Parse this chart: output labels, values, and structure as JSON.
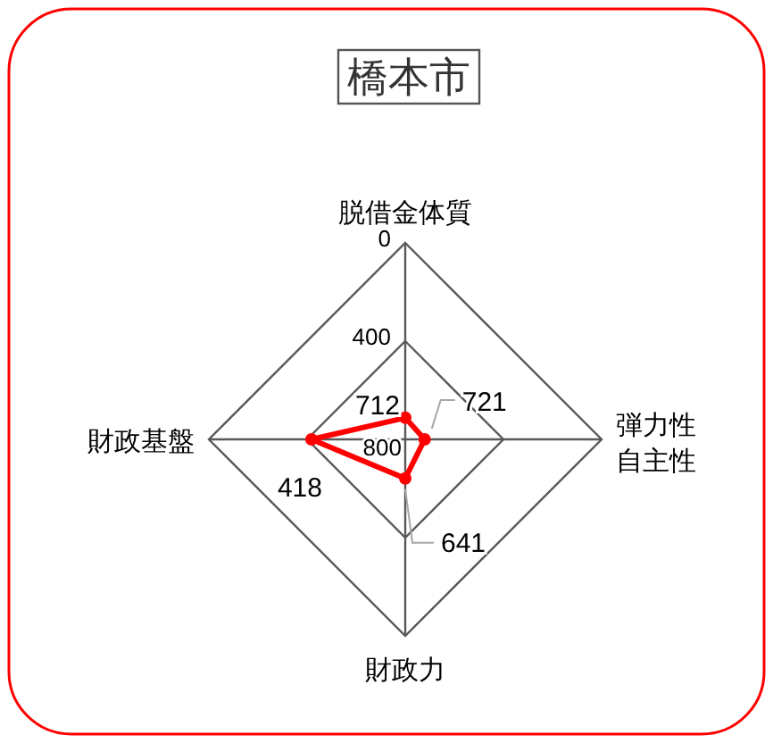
{
  "chart_data": {
    "type": "radar",
    "title": "橋本市",
    "categories": [
      "脱借金体質",
      "弾力性自主性",
      "財政力",
      "財政基盤"
    ],
    "series": [
      {
        "color": "#ff0000",
        "values": [
          712,
          721,
          641,
          418
        ]
      }
    ],
    "ylim": [
      800,
      0
    ],
    "yticks": [
      0,
      400,
      800
    ],
    "data_labels": true,
    "marker": "circle",
    "grid": true
  }
}
